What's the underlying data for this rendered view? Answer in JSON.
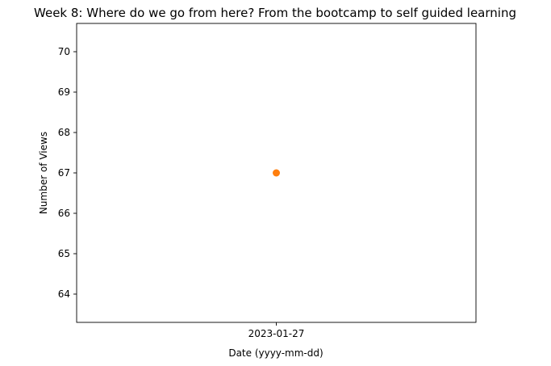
{
  "chart_data": {
    "type": "scatter",
    "title": "Week 8: Where do we go from here? From the bootcamp to self guided learning",
    "xlabel": "Date (yyyy-mm-dd)",
    "ylabel": "Number of Views",
    "x_ticks": [
      "2023-01-27"
    ],
    "y_ticks": [
      64,
      65,
      66,
      67,
      68,
      69,
      70
    ],
    "ylim": [
      63.3,
      70.7
    ],
    "grid": false,
    "series": [
      {
        "x": [
          "2023-01-27"
        ],
        "y": [
          67
        ],
        "color": "#ff7f0e"
      }
    ]
  }
}
